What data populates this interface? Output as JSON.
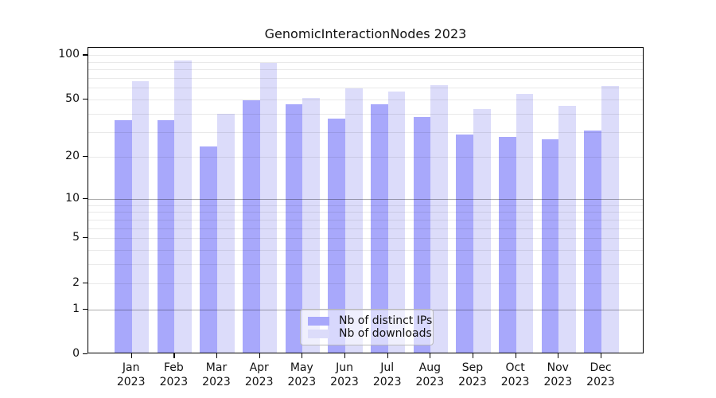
{
  "title": "GenomicInteractionNodes 2023",
  "chart_data": {
    "type": "bar",
    "title": "GenomicInteractionNodes 2023",
    "categories": [
      "Jan",
      "Feb",
      "Mar",
      "Apr",
      "May",
      "Jun",
      "Jul",
      "Aug",
      "Sep",
      "Oct",
      "Nov",
      "Dec"
    ],
    "x_tick_second_line": "2023",
    "series": [
      {
        "name": "Nb of distinct IPs",
        "color": "#a8a8fb",
        "values": [
          35,
          35,
          23,
          48,
          45,
          36,
          45,
          37,
          28,
          27,
          26,
          30
        ]
      },
      {
        "name": "Nb of downloads",
        "color": "#dcdcfa",
        "values": [
          65,
          90,
          39,
          87,
          50,
          58,
          55,
          61,
          42,
          53,
          44,
          60
        ]
      }
    ],
    "y_scale": "log10(1+x)",
    "ylim": [
      0,
      112
    ],
    "y_tick_labels": [
      100,
      50,
      20,
      10,
      5,
      2,
      1,
      0
    ],
    "y_major_gridlines": [
      1,
      10
    ],
    "y_minor_gridlines": [
      2,
      3,
      4,
      5,
      6,
      7,
      8,
      9,
      20,
      30,
      40,
      50,
      60,
      70,
      80,
      90,
      100
    ],
    "xlabel": "",
    "ylabel": "",
    "grid": "horizontal",
    "legend_position": "bottom-center"
  }
}
